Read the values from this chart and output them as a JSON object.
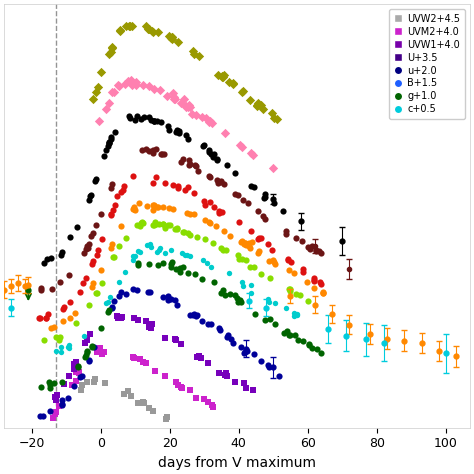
{
  "xlabel": "days from V maximum",
  "xlim": [
    -28,
    107
  ],
  "dashed_vline": -13,
  "figsize": [
    4.74,
    4.74
  ],
  "dpi": 100,
  "background_color": "#ffffff",
  "bands": [
    {
      "name": "UVW2+4.5",
      "color": "#aaaaaa",
      "marker": "s",
      "legend_marker": "s"
    },
    {
      "name": "UVM2+4.0",
      "color": "#cc22cc",
      "marker": "s",
      "legend_marker": "s"
    },
    {
      "name": "UVW1+4.0",
      "color": "#7700aa",
      "marker": "s",
      "legend_marker": "s"
    },
    {
      "name": "U+3.5",
      "color": "#440088",
      "marker": "s",
      "legend_marker": "s"
    },
    {
      "name": "u+2.0",
      "color": "#000080",
      "marker": "o",
      "legend_marker": "o"
    },
    {
      "name": "B+1.5",
      "color": "#1e5fff",
      "marker": "o",
      "legend_marker": "o"
    },
    {
      "name": "g+1.0",
      "color": "#006400",
      "marker": "o",
      "legend_marker": "o"
    },
    {
      "name": "c+0.5",
      "color": "#00ccdd",
      "marker": "o",
      "legend_marker": "o"
    }
  ]
}
